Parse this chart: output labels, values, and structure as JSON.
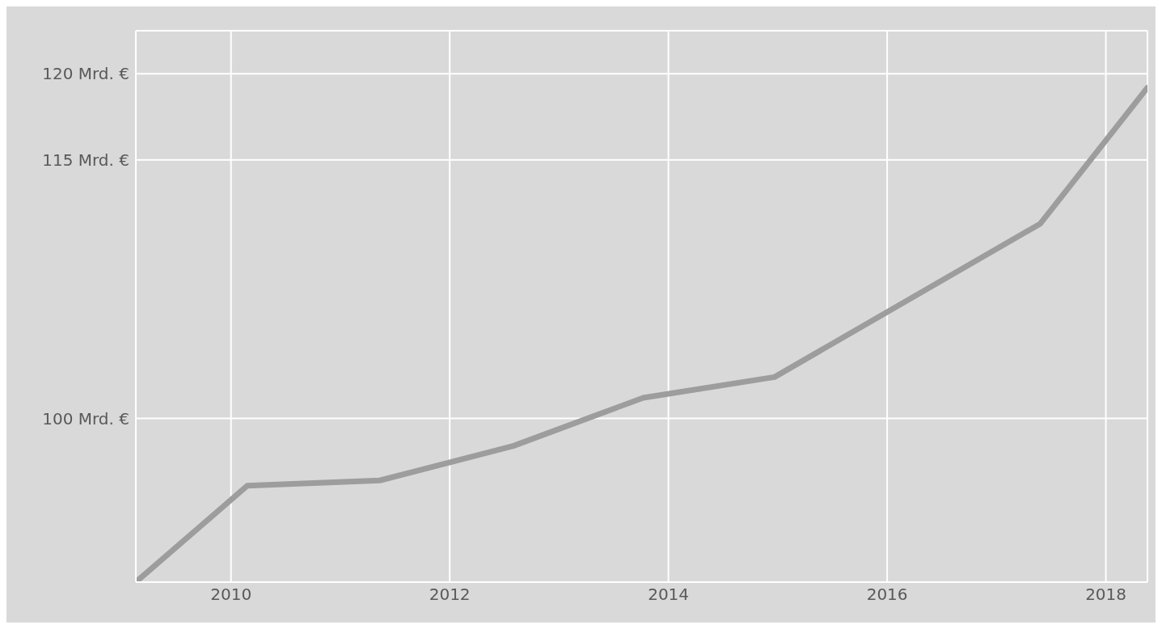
{
  "chart_data": {
    "type": "line",
    "x": [
      2009.13,
      2010.15,
      2011.36,
      2012.58,
      2013.77,
      2014.97,
      2017.4,
      2018.38
    ],
    "series": [
      {
        "color": "#9d9d9d",
        "values": [
          90.5,
          96.1,
          96.4,
          98.4,
          101.2,
          102.4,
          111.3,
          119.2
        ]
      }
    ],
    "xlim": [
      2009.13,
      2018.38
    ],
    "xticks": [
      2010,
      2012,
      2014,
      2016,
      2018
    ],
    "ylim": [
      90.5,
      122.5
    ],
    "yticks": [
      {
        "value": 100,
        "label": "100 Mrd. €"
      },
      {
        "value": 115,
        "label": "115 Mrd. €"
      },
      {
        "value": 120,
        "label": "120 Mrd. €"
      }
    ],
    "grid": true,
    "marker": "none",
    "line_style": "solid"
  }
}
